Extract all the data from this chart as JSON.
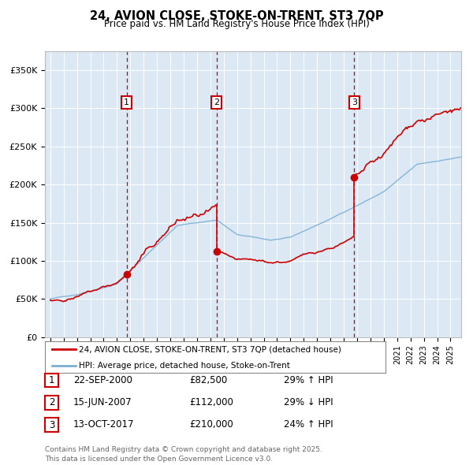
{
  "title_line1": "24, AVION CLOSE, STOKE-ON-TRENT, ST3 7QP",
  "title_line2": "Price paid vs. HM Land Registry's House Price Index (HPI)",
  "sale_prices": [
    82500,
    112000,
    210000
  ],
  "sale_labels": [
    "1",
    "2",
    "3"
  ],
  "sale_color": "#cc0000",
  "hpi_color": "#7bafd4",
  "plot_bg_color": "#dce9f5",
  "ylim": [
    0,
    375000
  ],
  "yticks": [
    0,
    50000,
    100000,
    150000,
    200000,
    250000,
    300000,
    350000
  ],
  "ytick_labels": [
    "£0",
    "£50K",
    "£100K",
    "£150K",
    "£200K",
    "£250K",
    "£300K",
    "£350K"
  ],
  "legend_label_red": "24, AVION CLOSE, STOKE-ON-TRENT, ST3 7QP (detached house)",
  "legend_label_blue": "HPI: Average price, detached house, Stoke-on-Trent",
  "table_rows": [
    [
      "1",
      "22-SEP-2000",
      "£82,500",
      "29% ↑ HPI"
    ],
    [
      "2",
      "15-JUN-2007",
      "£112,000",
      "29% ↓ HPI"
    ],
    [
      "3",
      "13-OCT-2017",
      "£210,000",
      "24% ↑ HPI"
    ]
  ],
  "footnote": "Contains HM Land Registry data © Crown copyright and database right 2025.\nThis data is licensed under the Open Government Licence v3.0.",
  "vline_color": "#cc0000",
  "marker_box_color": "#cc0000",
  "sale_year_decimals": [
    2000.72,
    2007.46,
    2017.78
  ],
  "xlim_left": 1994.6,
  "xlim_right": 2025.8
}
